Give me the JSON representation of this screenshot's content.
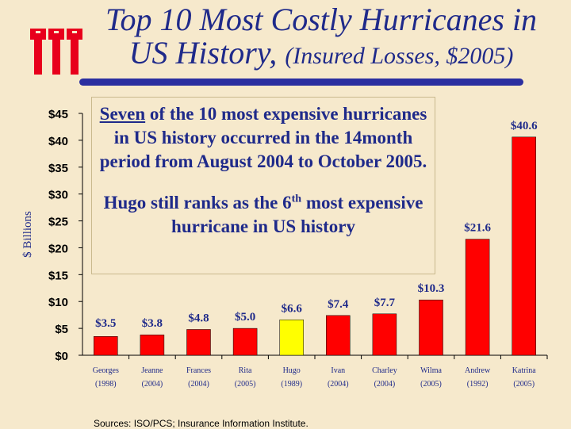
{
  "title": {
    "line1": "Top 10 Most Costly Hurricanes in",
    "line2_main": "US History,",
    "line2_sub": "(Insured Losses, $2005)"
  },
  "callout": {
    "p1_em": "Seven",
    "p1_rest": "of the 10 most expensive hurricanes in US history occurred in the 14month period from August 2004 to October 2005.",
    "p2_a": "Hugo still ranks as the 6",
    "p2_sup": "th",
    "p2_b": "most expensive hurricane in US history"
  },
  "source": "Sources: ISO/PCS; Insurance Information Institute.",
  "colors": {
    "bar": "#ff0000",
    "highlight": "#ffff00",
    "text": "#1f2a8a",
    "axis": "#000000"
  },
  "chart_data": {
    "type": "bar",
    "ylabel": "$ Billions",
    "ylim": [
      0,
      45
    ],
    "yticks": [
      0,
      5,
      10,
      15,
      20,
      25,
      30,
      35,
      40,
      45
    ],
    "ytick_labels": [
      "$0",
      "$5",
      "$10",
      "$15",
      "$20",
      "$25",
      "$30",
      "$35",
      "$40",
      "$45"
    ],
    "categories": [
      "Georges",
      "Jeanne",
      "Frances",
      "Rita",
      "Hugo",
      "Ivan",
      "Charley",
      "Wilma",
      "Andrew",
      "Katrina"
    ],
    "years": [
      "(1998)",
      "(2004)",
      "(2004)",
      "(2005)",
      "(1989)",
      "(2004)",
      "(2004)",
      "(2005)",
      "(1992)",
      "(2005)"
    ],
    "values": [
      3.5,
      3.8,
      4.8,
      5.0,
      6.6,
      7.4,
      7.7,
      10.3,
      21.6,
      40.6
    ],
    "value_labels": [
      "$3.5",
      "$3.8",
      "$4.8",
      "$5.0",
      "$6.6",
      "$7.4",
      "$7.7",
      "$10.3",
      "$21.6",
      "$40.6"
    ],
    "highlight": "Hugo",
    "grid": false
  }
}
